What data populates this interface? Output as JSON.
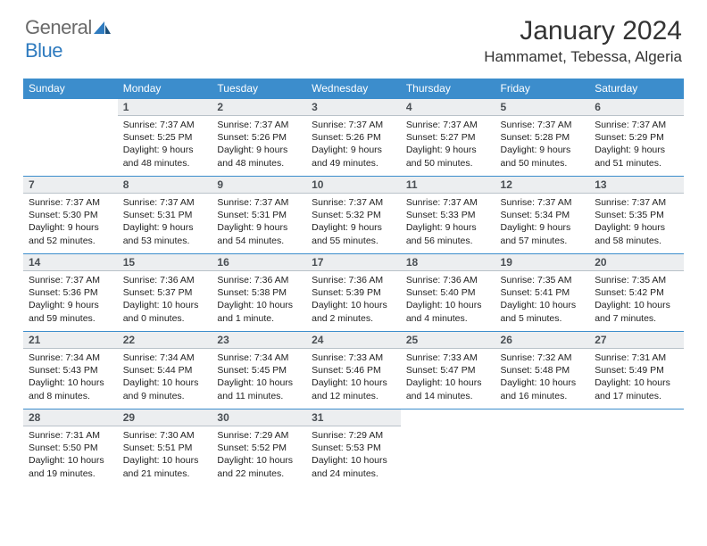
{
  "logo": {
    "general": "General",
    "blue": "Blue"
  },
  "title": "January 2024",
  "location": "Hammamet, Tebessa, Algeria",
  "header_bg": "#3c8dcc",
  "daynum_bg": "#eceef0",
  "weekdays": [
    "Sunday",
    "Monday",
    "Tuesday",
    "Wednesday",
    "Thursday",
    "Friday",
    "Saturday"
  ],
  "weeks": [
    {
      "nums": [
        "",
        "1",
        "2",
        "3",
        "4",
        "5",
        "6"
      ],
      "cells": [
        {
          "empty": true
        },
        {
          "sr": "Sunrise: 7:37 AM",
          "ss": "Sunset: 5:25 PM",
          "d1": "Daylight: 9 hours",
          "d2": "and 48 minutes."
        },
        {
          "sr": "Sunrise: 7:37 AM",
          "ss": "Sunset: 5:26 PM",
          "d1": "Daylight: 9 hours",
          "d2": "and 48 minutes."
        },
        {
          "sr": "Sunrise: 7:37 AM",
          "ss": "Sunset: 5:26 PM",
          "d1": "Daylight: 9 hours",
          "d2": "and 49 minutes."
        },
        {
          "sr": "Sunrise: 7:37 AM",
          "ss": "Sunset: 5:27 PM",
          "d1": "Daylight: 9 hours",
          "d2": "and 50 minutes."
        },
        {
          "sr": "Sunrise: 7:37 AM",
          "ss": "Sunset: 5:28 PM",
          "d1": "Daylight: 9 hours",
          "d2": "and 50 minutes."
        },
        {
          "sr": "Sunrise: 7:37 AM",
          "ss": "Sunset: 5:29 PM",
          "d1": "Daylight: 9 hours",
          "d2": "and 51 minutes."
        }
      ]
    },
    {
      "nums": [
        "7",
        "8",
        "9",
        "10",
        "11",
        "12",
        "13"
      ],
      "cells": [
        {
          "sr": "Sunrise: 7:37 AM",
          "ss": "Sunset: 5:30 PM",
          "d1": "Daylight: 9 hours",
          "d2": "and 52 minutes."
        },
        {
          "sr": "Sunrise: 7:37 AM",
          "ss": "Sunset: 5:31 PM",
          "d1": "Daylight: 9 hours",
          "d2": "and 53 minutes."
        },
        {
          "sr": "Sunrise: 7:37 AM",
          "ss": "Sunset: 5:31 PM",
          "d1": "Daylight: 9 hours",
          "d2": "and 54 minutes."
        },
        {
          "sr": "Sunrise: 7:37 AM",
          "ss": "Sunset: 5:32 PM",
          "d1": "Daylight: 9 hours",
          "d2": "and 55 minutes."
        },
        {
          "sr": "Sunrise: 7:37 AM",
          "ss": "Sunset: 5:33 PM",
          "d1": "Daylight: 9 hours",
          "d2": "and 56 minutes."
        },
        {
          "sr": "Sunrise: 7:37 AM",
          "ss": "Sunset: 5:34 PM",
          "d1": "Daylight: 9 hours",
          "d2": "and 57 minutes."
        },
        {
          "sr": "Sunrise: 7:37 AM",
          "ss": "Sunset: 5:35 PM",
          "d1": "Daylight: 9 hours",
          "d2": "and 58 minutes."
        }
      ]
    },
    {
      "nums": [
        "14",
        "15",
        "16",
        "17",
        "18",
        "19",
        "20"
      ],
      "cells": [
        {
          "sr": "Sunrise: 7:37 AM",
          "ss": "Sunset: 5:36 PM",
          "d1": "Daylight: 9 hours",
          "d2": "and 59 minutes."
        },
        {
          "sr": "Sunrise: 7:36 AM",
          "ss": "Sunset: 5:37 PM",
          "d1": "Daylight: 10 hours",
          "d2": "and 0 minutes."
        },
        {
          "sr": "Sunrise: 7:36 AM",
          "ss": "Sunset: 5:38 PM",
          "d1": "Daylight: 10 hours",
          "d2": "and 1 minute."
        },
        {
          "sr": "Sunrise: 7:36 AM",
          "ss": "Sunset: 5:39 PM",
          "d1": "Daylight: 10 hours",
          "d2": "and 2 minutes."
        },
        {
          "sr": "Sunrise: 7:36 AM",
          "ss": "Sunset: 5:40 PM",
          "d1": "Daylight: 10 hours",
          "d2": "and 4 minutes."
        },
        {
          "sr": "Sunrise: 7:35 AM",
          "ss": "Sunset: 5:41 PM",
          "d1": "Daylight: 10 hours",
          "d2": "and 5 minutes."
        },
        {
          "sr": "Sunrise: 7:35 AM",
          "ss": "Sunset: 5:42 PM",
          "d1": "Daylight: 10 hours",
          "d2": "and 7 minutes."
        }
      ]
    },
    {
      "nums": [
        "21",
        "22",
        "23",
        "24",
        "25",
        "26",
        "27"
      ],
      "cells": [
        {
          "sr": "Sunrise: 7:34 AM",
          "ss": "Sunset: 5:43 PM",
          "d1": "Daylight: 10 hours",
          "d2": "and 8 minutes."
        },
        {
          "sr": "Sunrise: 7:34 AM",
          "ss": "Sunset: 5:44 PM",
          "d1": "Daylight: 10 hours",
          "d2": "and 9 minutes."
        },
        {
          "sr": "Sunrise: 7:34 AM",
          "ss": "Sunset: 5:45 PM",
          "d1": "Daylight: 10 hours",
          "d2": "and 11 minutes."
        },
        {
          "sr": "Sunrise: 7:33 AM",
          "ss": "Sunset: 5:46 PM",
          "d1": "Daylight: 10 hours",
          "d2": "and 12 minutes."
        },
        {
          "sr": "Sunrise: 7:33 AM",
          "ss": "Sunset: 5:47 PM",
          "d1": "Daylight: 10 hours",
          "d2": "and 14 minutes."
        },
        {
          "sr": "Sunrise: 7:32 AM",
          "ss": "Sunset: 5:48 PM",
          "d1": "Daylight: 10 hours",
          "d2": "and 16 minutes."
        },
        {
          "sr": "Sunrise: 7:31 AM",
          "ss": "Sunset: 5:49 PM",
          "d1": "Daylight: 10 hours",
          "d2": "and 17 minutes."
        }
      ]
    },
    {
      "nums": [
        "28",
        "29",
        "30",
        "31",
        "",
        "",
        ""
      ],
      "cells": [
        {
          "sr": "Sunrise: 7:31 AM",
          "ss": "Sunset: 5:50 PM",
          "d1": "Daylight: 10 hours",
          "d2": "and 19 minutes."
        },
        {
          "sr": "Sunrise: 7:30 AM",
          "ss": "Sunset: 5:51 PM",
          "d1": "Daylight: 10 hours",
          "d2": "and 21 minutes."
        },
        {
          "sr": "Sunrise: 7:29 AM",
          "ss": "Sunset: 5:52 PM",
          "d1": "Daylight: 10 hours",
          "d2": "and 22 minutes."
        },
        {
          "sr": "Sunrise: 7:29 AM",
          "ss": "Sunset: 5:53 PM",
          "d1": "Daylight: 10 hours",
          "d2": "and 24 minutes."
        },
        {
          "empty": true
        },
        {
          "empty": true
        },
        {
          "empty": true
        }
      ]
    }
  ]
}
